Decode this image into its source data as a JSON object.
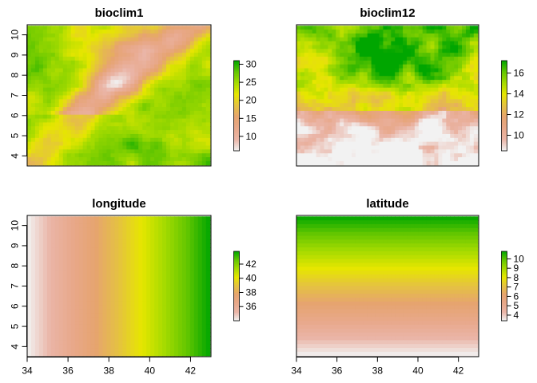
{
  "chart_data": [
    {
      "type": "heatmap",
      "title": "bioclim1",
      "xlim": [
        34,
        43
      ],
      "ylim": [
        3.5,
        10.5
      ],
      "x_ticks": [
        34,
        36,
        38,
        40,
        42
      ],
      "y_ticks": [
        4,
        5,
        6,
        7,
        8,
        9,
        10
      ],
      "show_x_axis": false,
      "show_y_axis": true,
      "legend": {
        "min": 6,
        "max": 31,
        "ticks": [
          "10",
          "15",
          "20",
          "25",
          "30"
        ],
        "tick_values": [
          10,
          15,
          20,
          25,
          30
        ]
      },
      "pattern": "terrain",
      "seed": 7
    },
    {
      "type": "heatmap",
      "title": "bioclim12",
      "xlim": [
        34,
        43
      ],
      "ylim": [
        3.5,
        10.5
      ],
      "x_ticks": [
        34,
        36,
        38,
        40,
        42
      ],
      "y_ticks": [
        4,
        5,
        6,
        7,
        8,
        9,
        10
      ],
      "show_x_axis": false,
      "show_y_axis": false,
      "legend": {
        "min": 8.5,
        "max": 17.2,
        "ticks": [
          "10",
          "12",
          "14",
          "16"
        ],
        "tick_values": [
          10,
          12,
          14,
          16
        ]
      },
      "pattern": "precip",
      "seed": 13
    },
    {
      "type": "heatmap",
      "title": "longitude",
      "xlim": [
        34,
        43
      ],
      "ylim": [
        3.5,
        10.5
      ],
      "x_ticks": [
        34,
        36,
        38,
        40,
        42
      ],
      "y_ticks": [
        4,
        5,
        6,
        7,
        8,
        9,
        10
      ],
      "show_x_axis": true,
      "show_y_axis": true,
      "legend": {
        "min": 34,
        "max": 43.8,
        "ticks": [
          "36",
          "38",
          "40",
          "42"
        ],
        "tick_values": [
          36,
          38,
          40,
          42
        ]
      },
      "pattern": "longitude",
      "seed": 1
    },
    {
      "type": "heatmap",
      "title": "latitude",
      "xlim": [
        34,
        43
      ],
      "ylim": [
        3.5,
        10.5
      ],
      "x_ticks": [
        34,
        36,
        38,
        40,
        42
      ],
      "y_ticks": [
        4,
        5,
        6,
        7,
        8,
        9,
        10
      ],
      "show_x_axis": true,
      "show_y_axis": false,
      "legend": {
        "min": 3.4,
        "max": 10.8,
        "ticks": [
          "4",
          "5",
          "6",
          "7",
          "8",
          "9",
          "10"
        ],
        "tick_values": [
          4,
          5,
          6,
          7,
          8,
          9,
          10
        ]
      },
      "pattern": "latitude",
      "seed": 2
    }
  ],
  "colors": {
    "palette": [
      "#F2F2F2",
      "#EAB5A7",
      "#E8A88A",
      "#E6A46F",
      "#E5C241",
      "#E6E600",
      "#A6DB00",
      "#63C600",
      "#00A600"
    ],
    "frame": "#000000",
    "no_data": "#ffffff"
  }
}
